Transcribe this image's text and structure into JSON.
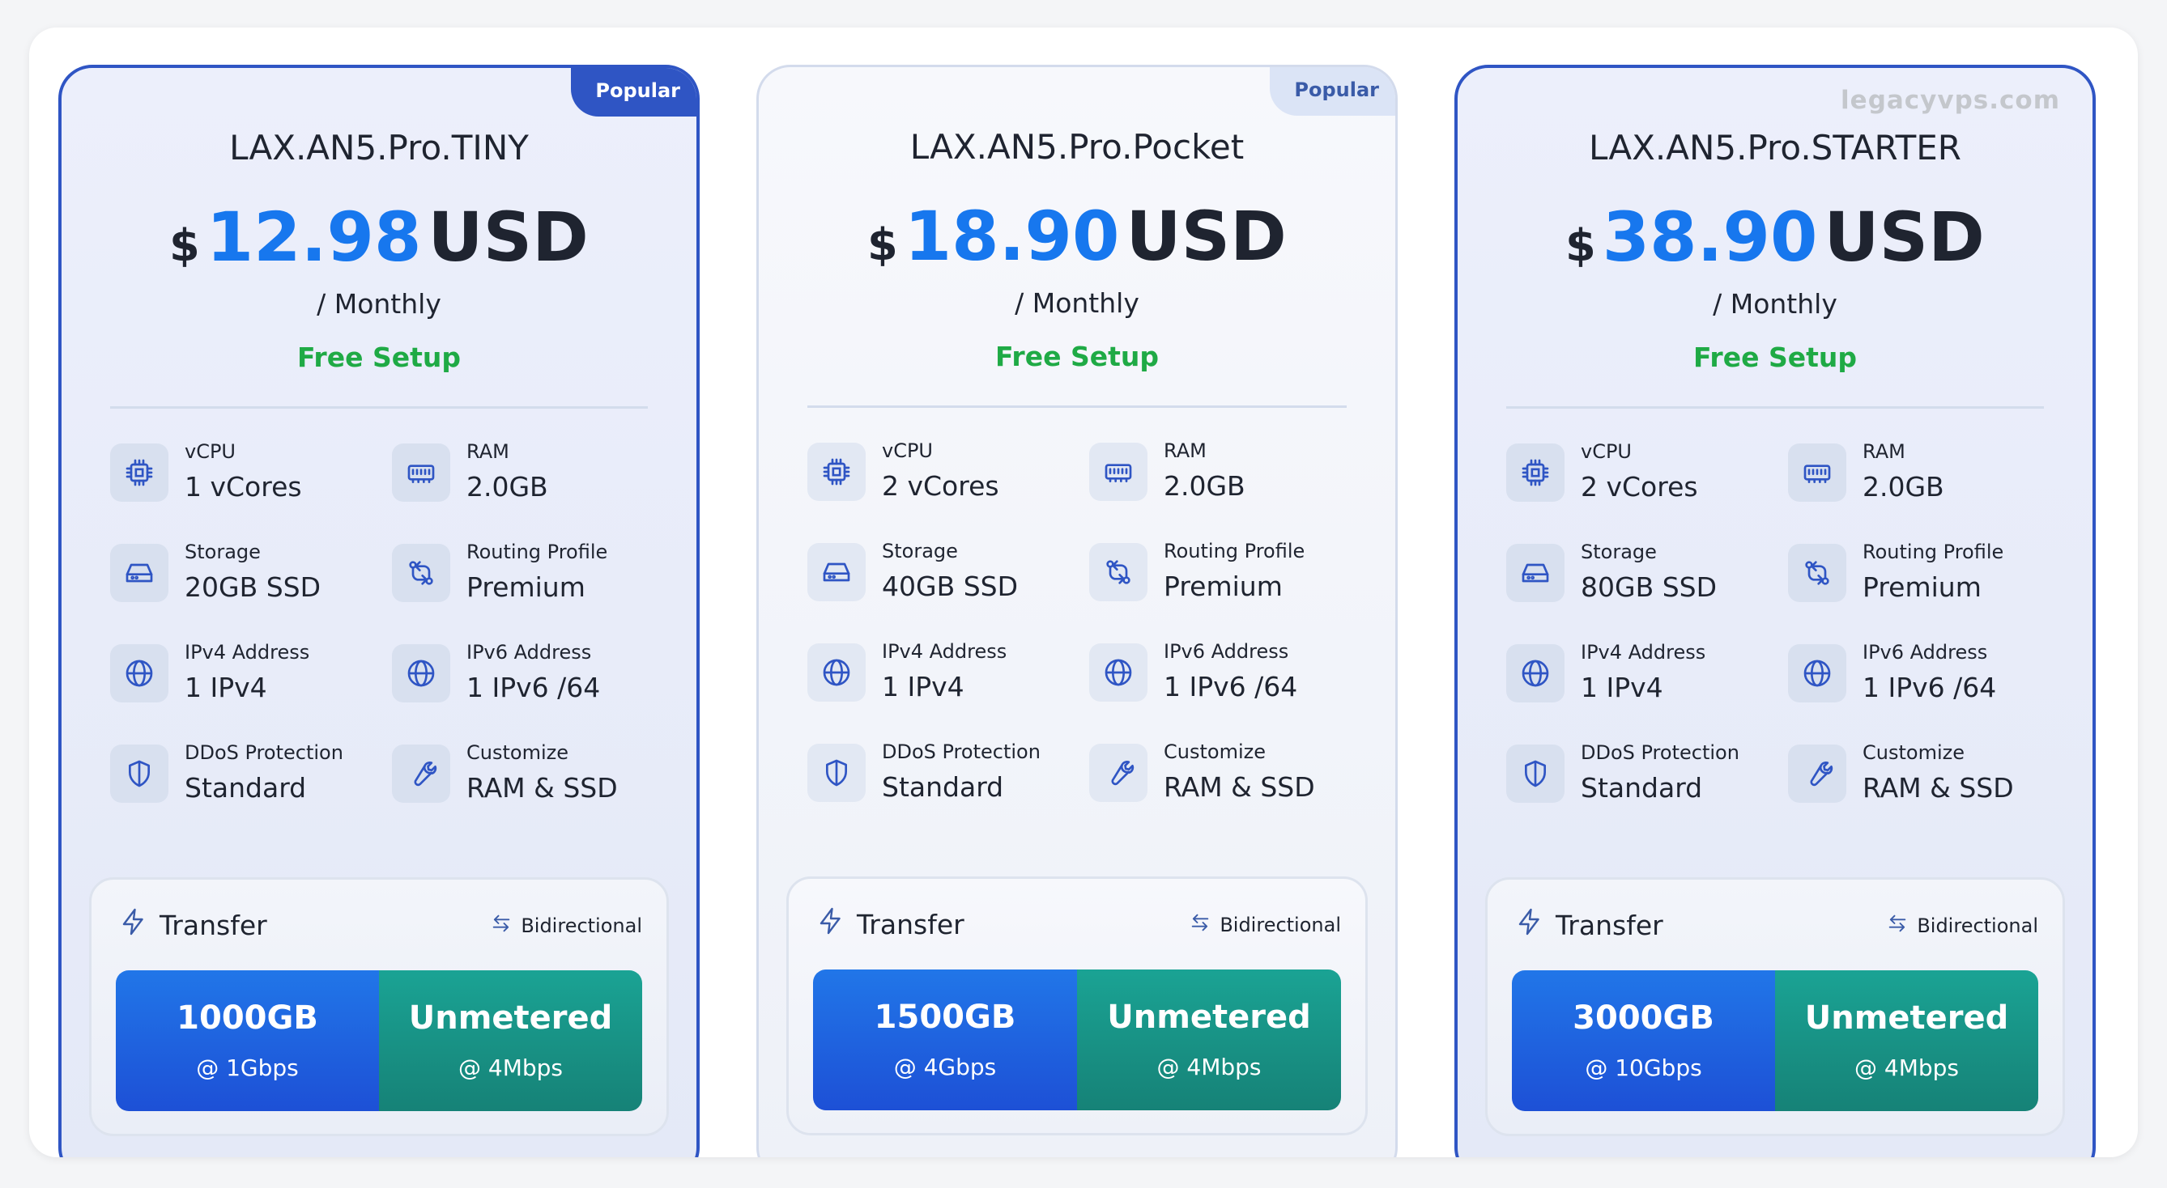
{
  "watermark": "legacyvps.com",
  "colors": {
    "accent_blue": "#1777ee",
    "card_border_active": "#2f55c4",
    "free_setup_green": "#1faa45",
    "transfer_blue": "#1d50d6",
    "transfer_teal": "#168277"
  },
  "labels": {
    "vcpu": "vCPU",
    "ram": "RAM",
    "storage": "Storage",
    "routing": "Routing Profile",
    "ipv4": "IPv4 Address",
    "ipv6": "IPv6 Address",
    "ddos": "DDoS Protection",
    "customize": "Customize",
    "transfer": "Transfer",
    "bidirectional": "Bidirectional",
    "currency_symbol": "$",
    "currency": "USD"
  },
  "icons": [
    "cpu-icon",
    "ram-icon",
    "storage-icon",
    "routing-icon",
    "globe-icon",
    "shield-icon",
    "wrench-icon",
    "lightning-icon",
    "swap-arrows-icon"
  ],
  "plans": [
    {
      "badge": "Popular",
      "name": "LAX.AN5.Pro.TINY",
      "price": "12.98",
      "period": "/ Monthly",
      "setup": "Free Setup",
      "vcpu": "1 vCores",
      "ram": "2.0GB",
      "storage": "20GB SSD",
      "routing": "Premium",
      "ipv4": "1 IPv4",
      "ipv6": "1 IPv6 /64",
      "ddos": "Standard",
      "customize": "RAM & SSD",
      "transfer_amount": "1000GB",
      "transfer_speed": "@ 1Gbps",
      "unmetered": "Unmetered",
      "unmetered_speed": "@ 4Mbps"
    },
    {
      "badge": "Popular",
      "name": "LAX.AN5.Pro.Pocket",
      "price": "18.90",
      "period": "/ Monthly",
      "setup": "Free Setup",
      "vcpu": "2 vCores",
      "ram": "2.0GB",
      "storage": "40GB SSD",
      "routing": "Premium",
      "ipv4": "1 IPv4",
      "ipv6": "1 IPv6 /64",
      "ddos": "Standard",
      "customize": "RAM & SSD",
      "transfer_amount": "1500GB",
      "transfer_speed": "@ 4Gbps",
      "unmetered": "Unmetered",
      "unmetered_speed": "@ 4Mbps"
    },
    {
      "badge": "",
      "name": "LAX.AN5.Pro.STARTER",
      "price": "38.90",
      "period": "/ Monthly",
      "setup": "Free Setup",
      "vcpu": "2 vCores",
      "ram": "2.0GB",
      "storage": "80GB SSD",
      "routing": "Premium",
      "ipv4": "1 IPv4",
      "ipv6": "1 IPv6 /64",
      "ddos": "Standard",
      "customize": "RAM & SSD",
      "transfer_amount": "3000GB",
      "transfer_speed": "@ 10Gbps",
      "unmetered": "Unmetered",
      "unmetered_speed": "@ 4Mbps"
    }
  ]
}
